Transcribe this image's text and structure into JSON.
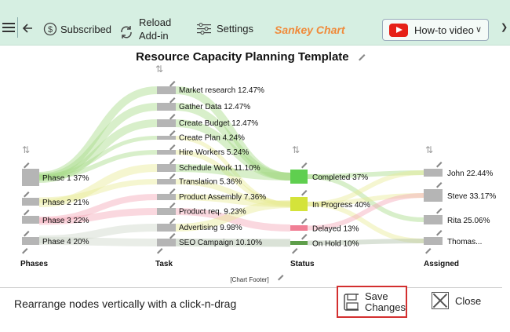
{
  "toolbar": {
    "subscribed_label": "Subscribed",
    "reload_label": "Reload",
    "reload_label_2": "Add-in",
    "settings_label": "Settings",
    "sankey_label": "Sankey Chart",
    "howto_label": "How-to video"
  },
  "footer": {
    "hint": "Rearrange nodes vertically with a click-n-drag",
    "save_label": "Save",
    "save_label_2": "Changes",
    "close_label": "Close"
  },
  "chart_data": {
    "type": "sankey",
    "title": "Resource Capacity Planning Template",
    "footer": "[Chart Footer]",
    "columns": [
      "Phases",
      "Task",
      "Status",
      "Assigned"
    ],
    "phases": [
      {
        "label": "Phase 1 37%",
        "value": 37
      },
      {
        "label": "Phase 2 21%",
        "value": 21
      },
      {
        "label": "Phase 3 22%",
        "value": 22
      },
      {
        "label": "Phase 4 20%",
        "value": 20
      }
    ],
    "tasks": [
      {
        "label": "Market research 12.47%",
        "value": 12.47
      },
      {
        "label": "Gather Data 12.47%",
        "value": 12.47
      },
      {
        "label": "Create Budget 12.47%",
        "value": 12.47
      },
      {
        "label": "Create Plan 4.24%",
        "value": 4.24
      },
      {
        "label": "Hire Workers 5.24%",
        "value": 5.24
      },
      {
        "label": "Schedule Work 11.10%",
        "value": 11.1
      },
      {
        "label": "Translation 5.36%",
        "value": 5.36
      },
      {
        "label": "Product Assembly 7.36%",
        "value": 7.36
      },
      {
        "label": "Product req. 9.23%",
        "value": 9.23
      },
      {
        "label": "Advertising 9.98%",
        "value": 9.98
      },
      {
        "label": "SEO Campaign 10.10%",
        "value": 10.1
      }
    ],
    "status": [
      {
        "label": "Completed 37%",
        "value": 37,
        "color": "#5fcf4f"
      },
      {
        "label": "In Progress 40%",
        "value": 40,
        "color": "#d4e33a"
      },
      {
        "label": "Delayed 13%",
        "value": 13,
        "color": "#f07f95"
      },
      {
        "label": "On Hold 10%",
        "value": 10,
        "color": "#5e9e4a"
      }
    ],
    "assigned": [
      {
        "label": "John 22.44%",
        "value": 22.44
      },
      {
        "label": "Steve 33.17%",
        "value": 33.17
      },
      {
        "label": "Rita 25.06%",
        "value": 25.06
      },
      {
        "label": "Thomas...",
        "value": 19.33
      }
    ]
  }
}
